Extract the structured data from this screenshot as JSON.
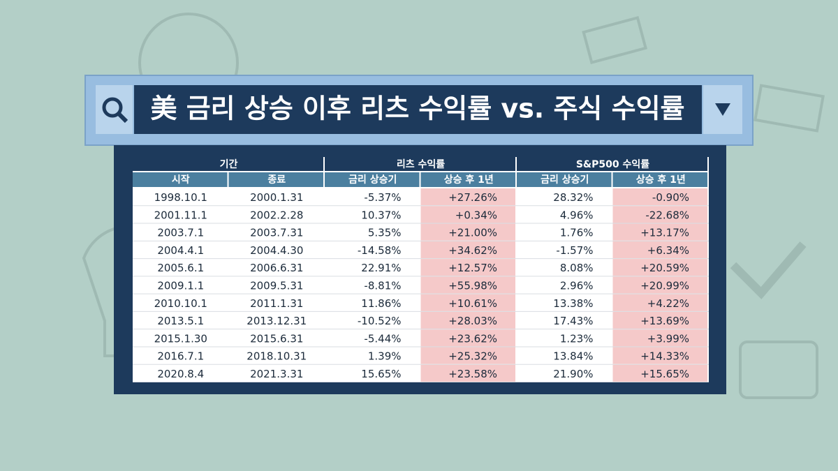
{
  "title": "美 금리 상승 이후 리츠 수익률 vs. 주식 수익률",
  "table": {
    "group_headers": [
      "기간",
      "리츠 수익률",
      "S&P500 수익률"
    ],
    "column_headers": [
      "시작",
      "종료",
      "금리 상승기",
      "상승 후 1년",
      "금리 상승기",
      "상승 후 1년"
    ],
    "rows": [
      [
        "1998.10.1",
        "2000.1.31",
        "-5.37%",
        "+27.26%",
        "28.32%",
        "-0.90%"
      ],
      [
        "2001.11.1",
        "2002.2.28",
        "10.37%",
        "+0.34%",
        "4.96%",
        "-22.68%"
      ],
      [
        "2003.7.1",
        "2003.7.31",
        "5.35%",
        "+21.00%",
        "1.76%",
        "+13.17%"
      ],
      [
        "2004.4.1",
        "2004.4.30",
        "-14.58%",
        "+34.62%",
        "-1.57%",
        "+6.34%"
      ],
      [
        "2005.6.1",
        "2006.6.31",
        "22.91%",
        "+12.57%",
        "8.08%",
        "+20.59%"
      ],
      [
        "2009.1.1",
        "2009.5.31",
        "-8.81%",
        "+55.98%",
        "2.96%",
        "+20.99%"
      ],
      [
        "2010.10.1",
        "2011.1.31",
        "11.86%",
        "+10.61%",
        "13.38%",
        "+4.22%"
      ],
      [
        "2013.5.1",
        "2013.12.31",
        "-10.52%",
        "+28.03%",
        "17.43%",
        "+13.69%"
      ],
      [
        "2015.1.30",
        "2015.6.31",
        "-5.44%",
        "+23.62%",
        "1.23%",
        "+3.99%"
      ],
      [
        "2016.7.1",
        "2018.10.31",
        "1.39%",
        "+25.32%",
        "13.84%",
        "+14.33%"
      ],
      [
        "2020.8.4",
        "2021.3.31",
        "15.65%",
        "+23.58%",
        "21.90%",
        "+15.65%"
      ]
    ]
  }
}
